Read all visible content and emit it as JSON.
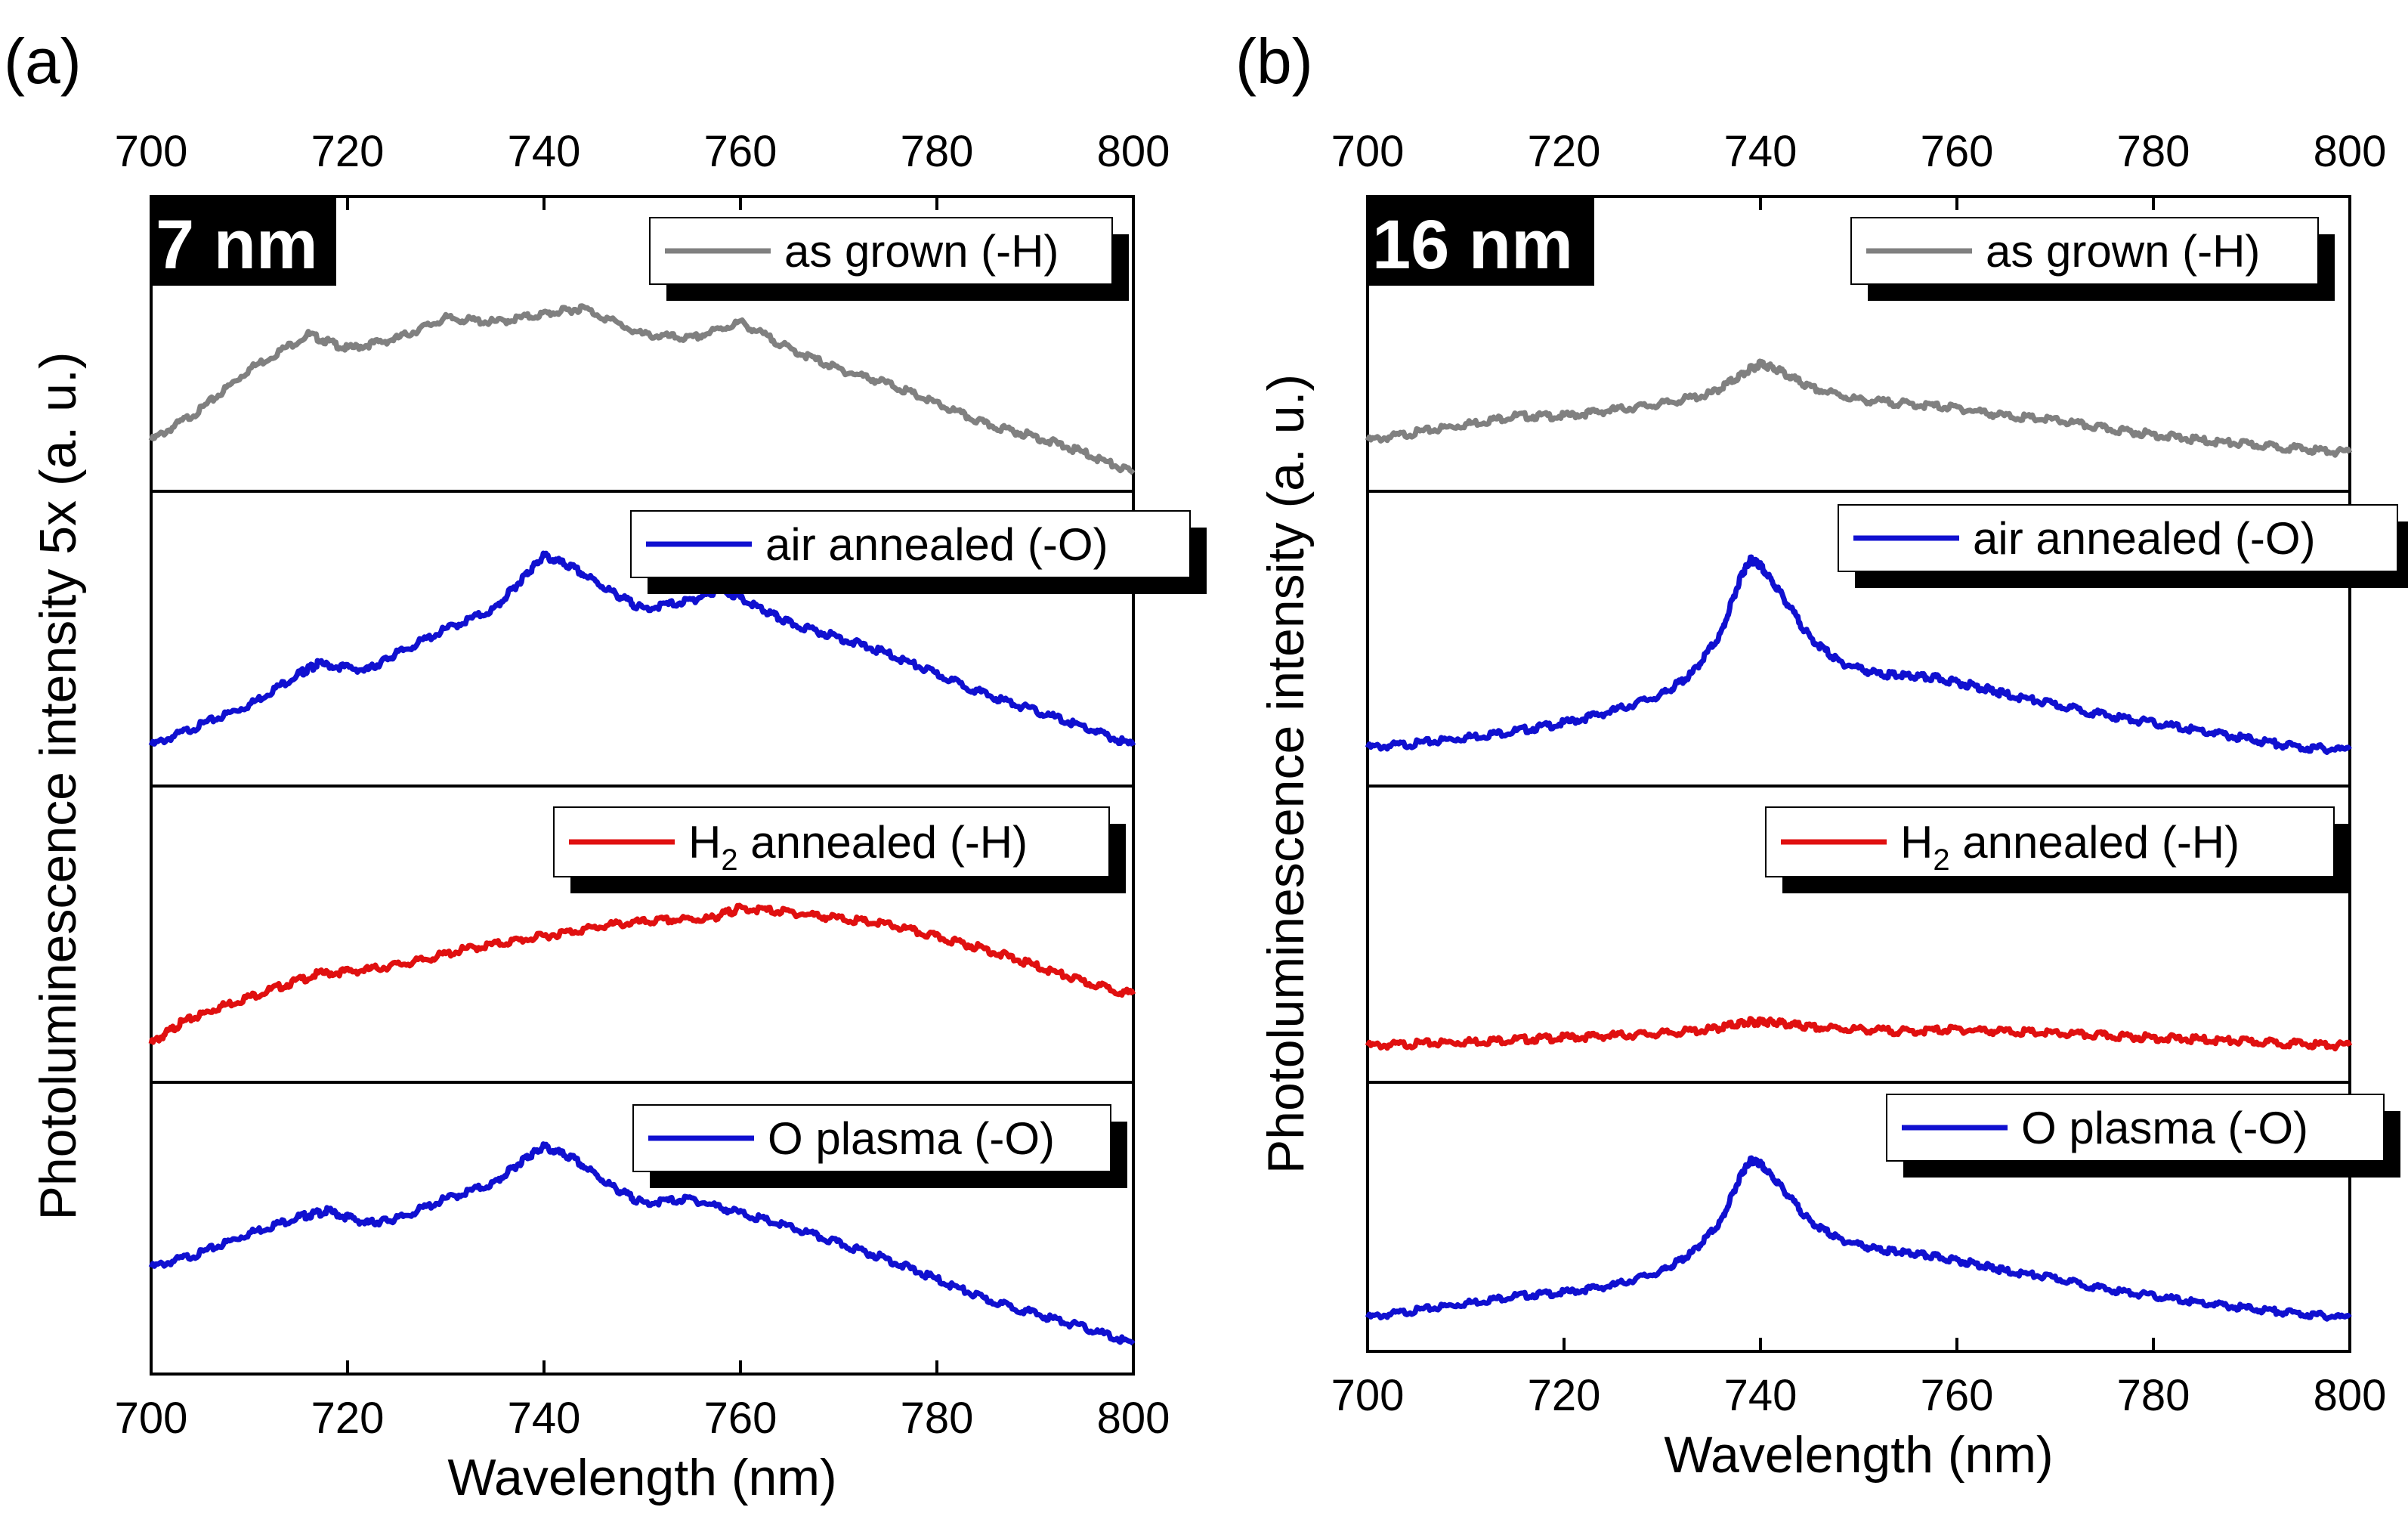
{
  "chart_data": [
    {
      "type": "line",
      "panel_label": "(a)",
      "size_label": "7 nm",
      "xlabel": "Wavelength (nm)",
      "ylabel": "Photoluminescence intensity 5x (a. u.)",
      "xlim": [
        700,
        800
      ],
      "x_ticks": [
        700,
        720,
        740,
        760,
        780,
        800
      ],
      "x_tick_labels": [
        "700",
        "720",
        "740",
        "760",
        "780",
        "800"
      ],
      "series": [
        {
          "name": "as grown (-H)",
          "color": "#808080",
          "x": [
            700,
            705,
            710,
            716,
            720,
            725,
            730,
            735,
            740,
            744,
            750,
            755,
            760,
            765,
            770,
            775,
            780,
            785,
            790,
            795,
            800
          ],
          "y": [
            0.1,
            0.25,
            0.45,
            0.62,
            0.55,
            0.6,
            0.7,
            0.68,
            0.72,
            0.75,
            0.62,
            0.6,
            0.68,
            0.55,
            0.45,
            0.38,
            0.28,
            0.18,
            0.12,
            0.04,
            -0.06
          ]
        },
        {
          "name": "air annealed (-O)",
          "color": "#1010d0",
          "x": [
            700,
            705,
            710,
            715,
            717,
            722,
            725,
            730,
            735,
            738,
            740,
            743,
            747,
            750,
            755,
            758,
            762,
            765,
            770,
            775,
            780,
            785,
            790,
            795,
            800
          ],
          "y": [
            0.05,
            0.15,
            0.25,
            0.4,
            0.45,
            0.42,
            0.5,
            0.62,
            0.72,
            0.88,
            0.98,
            0.92,
            0.8,
            0.72,
            0.76,
            0.82,
            0.72,
            0.65,
            0.58,
            0.5,
            0.4,
            0.3,
            0.22,
            0.14,
            0.05
          ]
        },
        {
          "name": "H2 annealed (-H)",
          "color": "#e01010",
          "legend_main": "H",
          "legend_sub": "2",
          "legend_rest": " annealed (-H)",
          "x": [
            700,
            703,
            707,
            712,
            717,
            722,
            727,
            732,
            737,
            742,
            747,
            752,
            757,
            760,
            765,
            770,
            775,
            780,
            785,
            790,
            795,
            800
          ],
          "y": [
            0.04,
            0.14,
            0.22,
            0.3,
            0.38,
            0.4,
            0.44,
            0.5,
            0.54,
            0.58,
            0.62,
            0.64,
            0.65,
            0.7,
            0.68,
            0.65,
            0.62,
            0.56,
            0.5,
            0.42,
            0.34,
            0.28
          ]
        },
        {
          "name": "O plasma (-O)",
          "color": "#1010d0",
          "x": [
            700,
            705,
            710,
            715,
            718,
            722,
            725,
            730,
            735,
            738,
            740,
            743,
            747,
            750,
            755,
            760,
            765,
            770,
            775,
            780,
            785,
            790,
            795,
            800
          ],
          "y": [
            0.38,
            0.45,
            0.55,
            0.63,
            0.66,
            0.6,
            0.62,
            0.72,
            0.8,
            0.92,
            0.98,
            0.92,
            0.78,
            0.7,
            0.72,
            0.65,
            0.58,
            0.5,
            0.42,
            0.32,
            0.22,
            0.15,
            0.08,
            0.0
          ]
        }
      ]
    },
    {
      "type": "line",
      "panel_label": "(b)",
      "size_label": "16 nm",
      "xlabel": "Wavelength (nm)",
      "ylabel": "Photoluminescence intensity (a. u.)",
      "xlim": [
        700,
        800
      ],
      "x_ticks": [
        700,
        720,
        740,
        760,
        780,
        800
      ],
      "x_tick_labels": [
        "700",
        "720",
        "740",
        "760",
        "780",
        "800"
      ],
      "series": [
        {
          "name": "as grown (-H)",
          "color": "#808080",
          "x": [
            700,
            705,
            710,
            715,
            720,
            725,
            730,
            735,
            738,
            740,
            742,
            745,
            750,
            755,
            760,
            765,
            770,
            775,
            780,
            785,
            790,
            795,
            800
          ],
          "y": [
            0.1,
            0.14,
            0.18,
            0.22,
            0.22,
            0.25,
            0.28,
            0.33,
            0.42,
            0.48,
            0.44,
            0.36,
            0.3,
            0.28,
            0.26,
            0.22,
            0.2,
            0.16,
            0.13,
            0.1,
            0.08,
            0.06,
            0.04
          ]
        },
        {
          "name": "air annealed (-O)",
          "color": "#1010d0",
          "x": [
            700,
            705,
            710,
            715,
            720,
            725,
            730,
            733,
            736,
            738,
            739,
            740,
            742,
            745,
            748,
            752,
            755,
            758,
            762,
            765,
            770,
            775,
            780,
            785,
            790,
            795,
            800
          ],
          "y": [
            0.04,
            0.06,
            0.09,
            0.12,
            0.16,
            0.22,
            0.3,
            0.4,
            0.6,
            0.88,
            0.96,
            0.93,
            0.8,
            0.58,
            0.46,
            0.4,
            0.39,
            0.38,
            0.34,
            0.3,
            0.25,
            0.2,
            0.16,
            0.12,
            0.08,
            0.04,
            0.03
          ]
        },
        {
          "name": "H2 annealed (-H)",
          "color": "#e01010",
          "legend_main": "H",
          "legend_sub": "2",
          "legend_rest": " annealed (-H)",
          "x": [
            700,
            705,
            710,
            715,
            720,
            725,
            730,
            735,
            738,
            740,
            742,
            745,
            750,
            755,
            760,
            765,
            770,
            775,
            780,
            785,
            790,
            795,
            800
          ],
          "y": [
            0.03,
            0.04,
            0.05,
            0.06,
            0.07,
            0.08,
            0.09,
            0.11,
            0.14,
            0.15,
            0.14,
            0.12,
            0.11,
            0.1,
            0.11,
            0.1,
            0.09,
            0.08,
            0.07,
            0.06,
            0.05,
            0.04,
            0.03
          ]
        },
        {
          "name": "O plasma (-O)",
          "color": "#1010d0",
          "x": [
            700,
            705,
            710,
            715,
            720,
            725,
            730,
            733,
            736,
            738,
            739,
            740,
            742,
            745,
            748,
            752,
            755,
            758,
            762,
            765,
            770,
            775,
            780,
            785,
            790,
            795,
            800
          ],
          "y": [
            0.02,
            0.06,
            0.1,
            0.14,
            0.16,
            0.2,
            0.28,
            0.38,
            0.56,
            0.82,
            0.9,
            0.88,
            0.76,
            0.56,
            0.46,
            0.4,
            0.38,
            0.36,
            0.32,
            0.28,
            0.24,
            0.18,
            0.14,
            0.1,
            0.07,
            0.04,
            0.02
          ]
        }
      ]
    }
  ]
}
